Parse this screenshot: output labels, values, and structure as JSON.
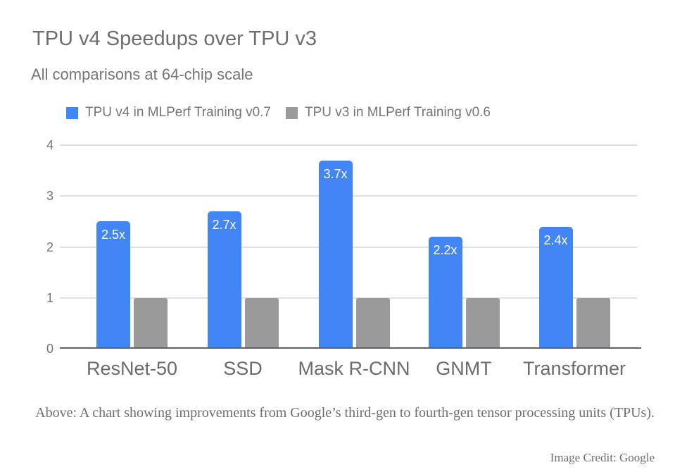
{
  "chart_data": {
    "type": "bar",
    "title": "TPU v4 Speedups over TPU v3",
    "subtitle": "All comparisons at 64-chip scale",
    "categories": [
      "ResNet-50",
      "SSD",
      "Mask R-CNN",
      "GNMT",
      "Transformer"
    ],
    "series": [
      {
        "name": "TPU v4 in MLPerf Training v0.7",
        "color": "#4285f4",
        "values": [
          2.5,
          2.7,
          3.7,
          2.2,
          2.4
        ],
        "value_labels": [
          "2.5x",
          "2.7x",
          "3.7x",
          "2.2x",
          "2.4x"
        ]
      },
      {
        "name": "TPU v3 in MLPerf Training v0.6",
        "color": "#9a9a9a",
        "values": [
          1,
          1,
          1,
          1,
          1
        ],
        "value_labels": [
          "",
          "",
          "",
          "",
          ""
        ]
      }
    ],
    "ylim": [
      0,
      4
    ],
    "yticks": [
      0,
      1,
      2,
      3,
      4
    ],
    "grid": true,
    "legend_position": "top",
    "bar_label_position": "inside-top"
  },
  "caption": {
    "text": "Above: A chart showing improvements from Google’s third-gen to fourth-gen tensor processing units (TPUs).",
    "credit": "Image Credit: Google"
  },
  "colors": {
    "tpu_v4_bar": "#4285f4",
    "tpu_v3_bar": "#9a9a9a",
    "bar_value_label": "#ffffff",
    "title_text": "#6e6e6e",
    "subtitle_text": "#757575",
    "legend_text": "#757575",
    "axis_tick_text": "#757575",
    "category_label_text": "#6b6b6b",
    "gridline": "#e0e0e0",
    "axis_baseline": "#5f6368",
    "caption_text": "#6d6d6d"
  }
}
